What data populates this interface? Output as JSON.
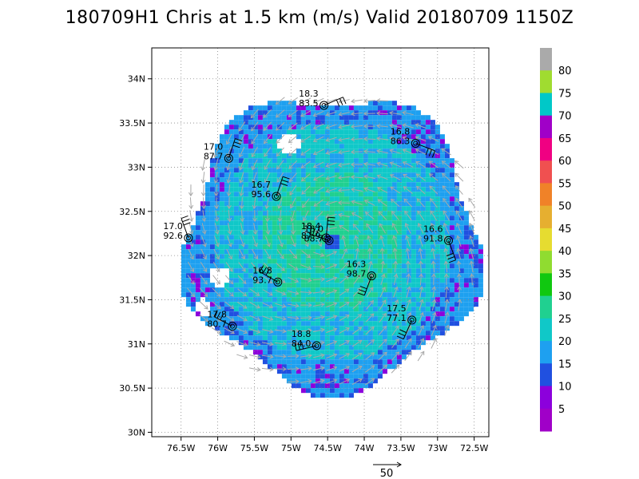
{
  "title": "180709H1 Chris at 1.5 km (m/s) Valid 20180709  1150Z",
  "chart_data": {
    "type": "heatmap",
    "title": "180709H1 Chris at 1.5 km (m/s) Valid 20180709  1150Z",
    "xlim": [
      -76.9,
      -72.3
    ],
    "ylim": [
      29.95,
      34.35
    ],
    "x_ticks": [
      {
        "value": -76.5,
        "label": "76.5W"
      },
      {
        "value": -76.0,
        "label": "76W"
      },
      {
        "value": -75.5,
        "label": "75.5W"
      },
      {
        "value": -75.0,
        "label": "75W"
      },
      {
        "value": -74.5,
        "label": "74.5W"
      },
      {
        "value": -74.0,
        "label": "74W"
      },
      {
        "value": -73.5,
        "label": "73.5W"
      },
      {
        "value": -73.0,
        "label": "73W"
      },
      {
        "value": -72.5,
        "label": "72.5W"
      }
    ],
    "y_ticks": [
      {
        "value": 30.0,
        "label": "30N"
      },
      {
        "value": 30.5,
        "label": "30.5N"
      },
      {
        "value": 31.0,
        "label": "31N"
      },
      {
        "value": 31.5,
        "label": "31.5N"
      },
      {
        "value": 32.0,
        "label": "32N"
      },
      {
        "value": 32.5,
        "label": "32.5N"
      },
      {
        "value": 33.0,
        "label": "33N"
      },
      {
        "value": 33.5,
        "label": "33.5N"
      },
      {
        "value": 34.0,
        "label": "34N"
      }
    ],
    "grid": true,
    "storm_center": {
      "lon": -74.47,
      "lat": 32.18
    },
    "colorbar": {
      "labels": [
        "5",
        "10",
        "15",
        "20",
        "25",
        "30",
        "35",
        "40",
        "45",
        "50",
        "55",
        "60",
        "65",
        "70",
        "75",
        "80"
      ],
      "colors": [
        "#a000c8",
        "#8c00dc",
        "#2050e0",
        "#1ea0f0",
        "#10c8c8",
        "#20d090",
        "#10c810",
        "#90dc30",
        "#e6dc30",
        "#e6af30",
        "#f08228",
        "#f05050",
        "#f00082",
        "#a000c8",
        "#00c8c8",
        "#a0dc30",
        "#aaaaaa"
      ]
    },
    "dropsondes": [
      {
        "lon": -74.55,
        "lat": 33.7,
        "speed": "18.3",
        "pressure": "83.5"
      },
      {
        "lon": -73.3,
        "lat": 33.27,
        "speed": "16.8",
        "pressure": "86.3"
      },
      {
        "lon": -75.85,
        "lat": 33.1,
        "speed": "17.0",
        "pressure": "87.7"
      },
      {
        "lon": -75.2,
        "lat": 32.67,
        "speed": "16.7",
        "pressure": "95.6"
      },
      {
        "lon": -76.4,
        "lat": 32.2,
        "speed": "17.0",
        "pressure": "92.6"
      },
      {
        "lon": -74.52,
        "lat": 32.2,
        "speed": "18.4",
        "pressure": "87.9"
      },
      {
        "lon": -74.48,
        "lat": 32.17,
        "speed": "18.0",
        "pressure": "88.7"
      },
      {
        "lon": -72.85,
        "lat": 32.17,
        "speed": "16.6",
        "pressure": "91.8"
      },
      {
        "lon": -73.9,
        "lat": 31.77,
        "speed": "16.3",
        "pressure": "98.7"
      },
      {
        "lon": -75.18,
        "lat": 31.7,
        "speed": "16.8",
        "pressure": "93.7"
      },
      {
        "lon": -73.35,
        "lat": 31.27,
        "speed": "17.5",
        "pressure": "77.1"
      },
      {
        "lon": -75.8,
        "lat": 31.2,
        "speed": "17.8",
        "pressure": "80.7"
      },
      {
        "lon": -74.65,
        "lat": 30.98,
        "speed": "18.8",
        "pressure": "84.0"
      }
    ],
    "reference_vector": {
      "label": "50"
    }
  }
}
